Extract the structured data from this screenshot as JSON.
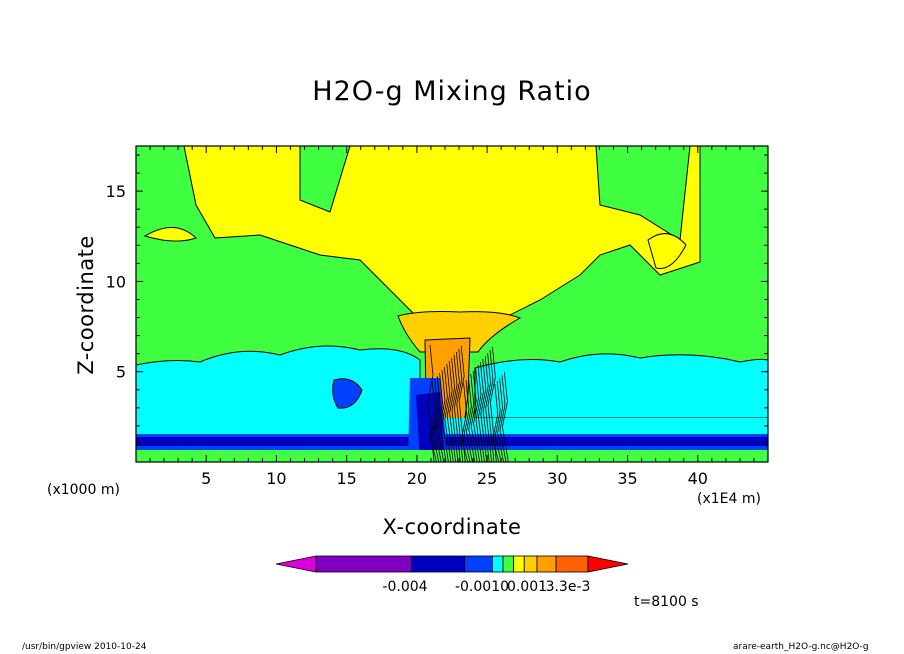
{
  "chart_data": {
    "type": "heatmap",
    "title": "H2O-g Mixing Ratio",
    "xlabel": "X-coordinate",
    "ylabel": "Z-coordinate",
    "x_unit_left": "(x1000 m)",
    "x_unit_right": "(x1E4 m)",
    "xlim": [
      0,
      45
    ],
    "ylim": [
      0,
      17.5
    ],
    "x_ticks": [
      "5",
      "10",
      "15",
      "20",
      "25",
      "30",
      "35",
      "40"
    ],
    "x_tick_values": [
      5,
      10,
      15,
      20,
      25,
      30,
      35,
      40
    ],
    "y_ticks": [
      "5",
      "10",
      "15"
    ],
    "y_tick_values": [
      5,
      10,
      15
    ],
    "colorbar": {
      "colors": [
        "#dd00dd",
        "#8000c0",
        "#0000c0",
        "#0040ff",
        "#00ffff",
        "#40ff40",
        "#ffff00",
        "#ffd000",
        "#ffa000",
        "#ff6000",
        "#ff0000"
      ],
      "labels": [
        "-0.004",
        "-0.0010",
        "0.001",
        "3.3e-3"
      ],
      "label_positions": [
        -0.004,
        -0.001,
        0.001,
        0.0033
      ],
      "range": [
        -0.0055,
        0.0045
      ]
    },
    "levels": {
      "background": "#40ff40",
      "upper_moist": "#ffff00",
      "updraft": "#ffd000",
      "core": "#ffa000",
      "dry_layer": "#00ffff",
      "very_dry": "#0040ff",
      "driest": "#0000c0"
    }
  },
  "time_label": "t=8100 s",
  "footer": {
    "left": "/usr/bin/gpview   2010-10-24",
    "right": "arare-earth_H2O-g.nc@H2O-g"
  }
}
